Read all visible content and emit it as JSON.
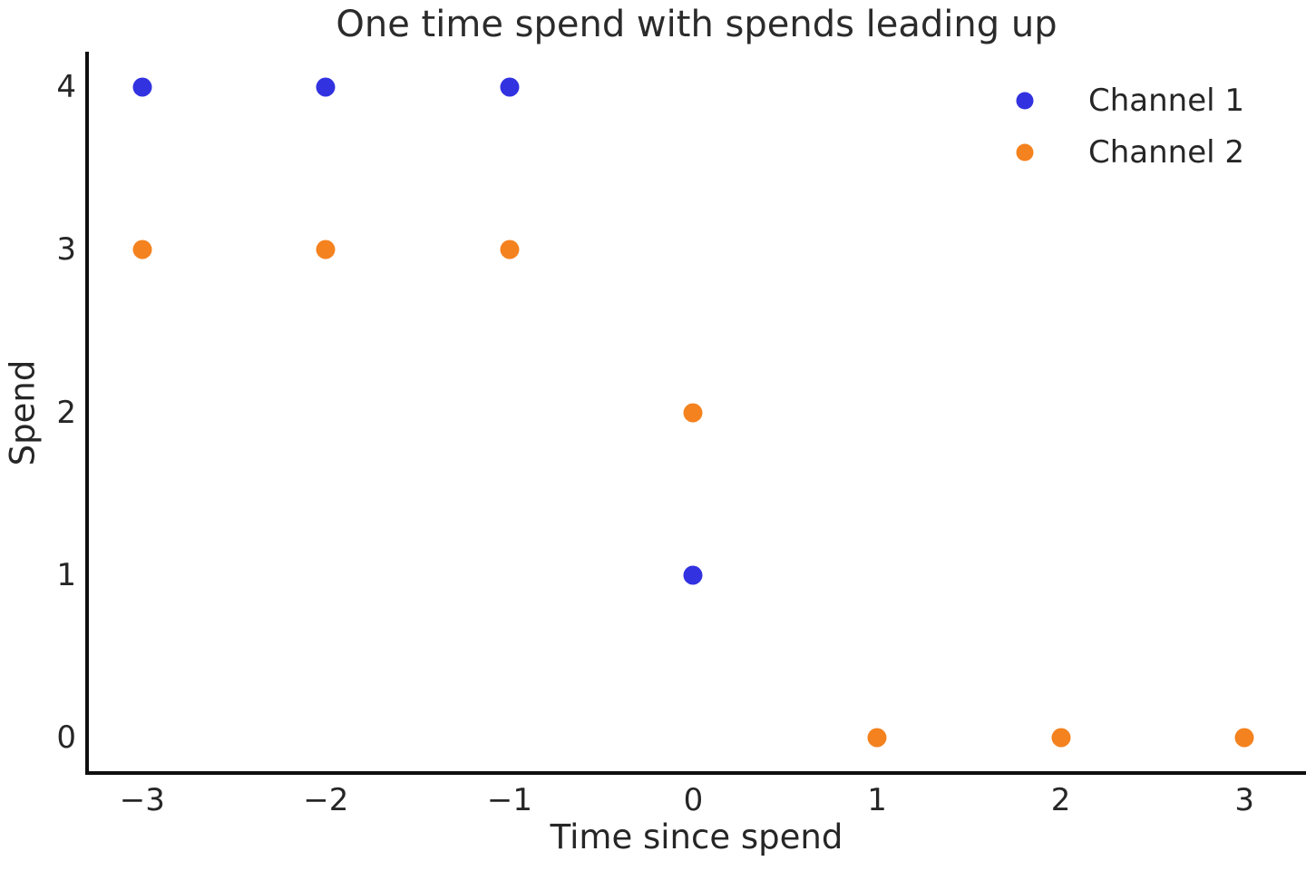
{
  "figure": {
    "background": "#ffffff",
    "text_color": "#262626",
    "spine_color": "#0f0f0f"
  },
  "chart_data": {
    "type": "scatter",
    "title": "One time spend with spends leading up",
    "xlabel": "Time since spend",
    "ylabel": "Spend",
    "xlim": [
      -3.3,
      3.335
    ],
    "ylim": [
      -0.215,
      4.215
    ],
    "grid": false,
    "legend_position": "upper right",
    "xticks": [
      {
        "value": -3,
        "label": "−3"
      },
      {
        "value": -2,
        "label": "−2"
      },
      {
        "value": -1,
        "label": "−1"
      },
      {
        "value": 0,
        "label": "0"
      },
      {
        "value": 1,
        "label": "1"
      },
      {
        "value": 2,
        "label": "2"
      },
      {
        "value": 3,
        "label": "3"
      }
    ],
    "yticks": [
      {
        "value": 0,
        "label": "0"
      },
      {
        "value": 1,
        "label": "1"
      },
      {
        "value": 2,
        "label": "2"
      },
      {
        "value": 3,
        "label": "3"
      },
      {
        "value": 4,
        "label": "4"
      }
    ],
    "series": [
      {
        "name": "Channel 1",
        "color": "#3232e1",
        "points": [
          [
            -3,
            4
          ],
          [
            -2,
            4
          ],
          [
            -1,
            4
          ],
          [
            0,
            1
          ]
        ]
      },
      {
        "name": "Channel 2",
        "color": "#f4821f",
        "points": [
          [
            -3,
            3
          ],
          [
            -2,
            3
          ],
          [
            -1,
            3
          ],
          [
            0,
            2
          ],
          [
            1,
            0
          ],
          [
            2,
            0
          ],
          [
            3,
            0
          ]
        ]
      }
    ]
  }
}
